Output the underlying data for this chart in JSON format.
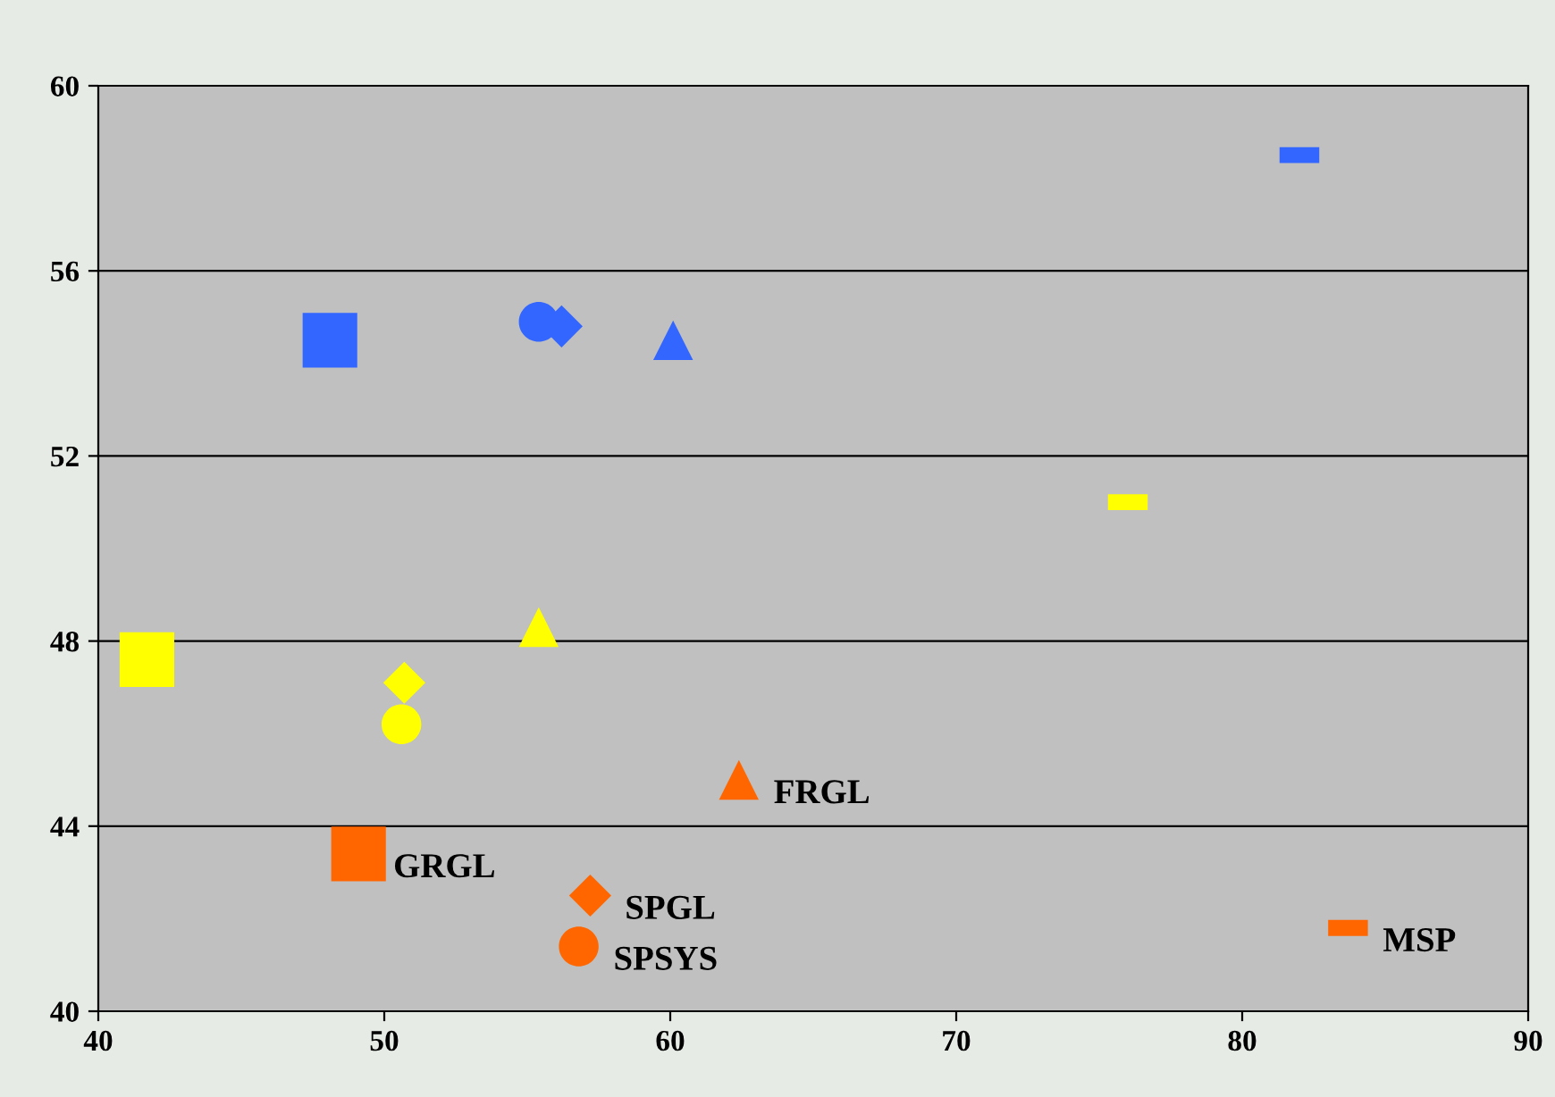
{
  "chart_data": {
    "type": "scatter",
    "xlim": [
      40,
      90
    ],
    "xticks": [
      40,
      50,
      60,
      70,
      80,
      90
    ],
    "ylim": [
      40,
      60
    ],
    "yticks": [
      40,
      44,
      48,
      52,
      56,
      60
    ],
    "grid": "y",
    "series": [
      {
        "marker": "square",
        "x": [
          48.1,
          41.7,
          49.1
        ],
        "values": [
          54.5,
          47.6,
          43.4
        ],
        "colors": [
          "#3366ff",
          "#ffff00",
          "#ff6600"
        ]
      },
      {
        "marker": "circle",
        "x": [
          55.4,
          50.6,
          56.8
        ],
        "values": [
          54.9,
          46.2,
          41.4
        ],
        "colors": [
          "#3366ff",
          "#ffff00",
          "#ff6600"
        ]
      },
      {
        "marker": "diamond",
        "x": [
          56.2,
          50.7,
          57.2
        ],
        "values": [
          54.8,
          47.1,
          42.5
        ],
        "colors": [
          "#3366ff",
          "#ffff00",
          "#ff6600"
        ]
      },
      {
        "marker": "triangle",
        "x": [
          60.1,
          55.4,
          62.4
        ],
        "values": [
          54.5,
          48.3,
          45.0
        ],
        "colors": [
          "#3366ff",
          "#ffff00",
          "#ff6600"
        ]
      },
      {
        "x": [
          82.0,
          76.0,
          83.7
        ],
        "values": [
          58.5,
          51.0,
          41.8
        ],
        "colors": [
          "#3366ff",
          "#ffff00",
          "#ff6600"
        ]
      }
    ],
    "annotations": [
      {
        "text": "GRGL",
        "x": 49.1,
        "y": 43.4
      },
      {
        "text": "FRGL",
        "x": 62.4,
        "y": 45.0
      },
      {
        "text": "SPGL",
        "x": 57.2,
        "y": 42.5
      },
      {
        "text": "SPSYS",
        "x": 56.8,
        "y": 41.4
      },
      {
        "text": "MSP",
        "x": 83.7,
        "y": 41.8
      }
    ]
  }
}
